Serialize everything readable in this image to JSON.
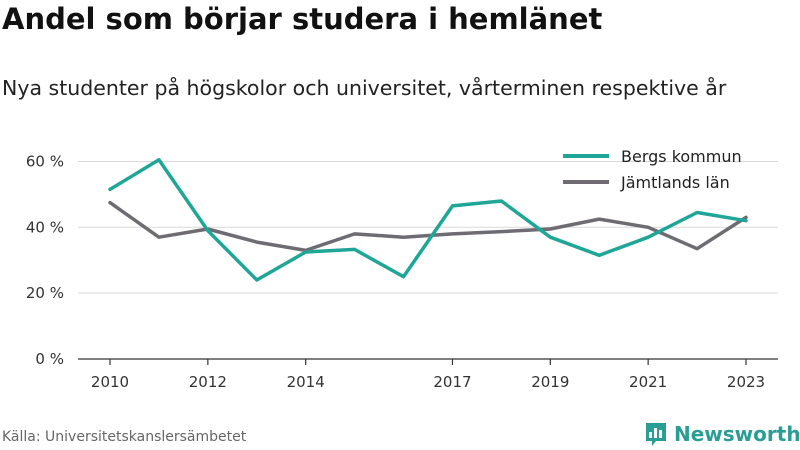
{
  "title": "Andel som börjar studera i hemlänet",
  "subtitle": "Nya studenter på högskolor och universitet, vårterminen respektive år",
  "source": "Källa: Universitetskanslersämbetet",
  "brand": {
    "name": "Newsworthy",
    "icon": "newsworthy-logo-icon",
    "color": "#2a9d95"
  },
  "chart_data": {
    "type": "line",
    "x": [
      2010,
      2011,
      2012,
      2013,
      2014,
      2015,
      2016,
      2017,
      2018,
      2019,
      2020,
      2021,
      2022,
      2023
    ],
    "series": [
      {
        "name": "Bergs kommun",
        "color": "#1fa697",
        "values": [
          51.5,
          60.5,
          39,
          24,
          32.5,
          33.3,
          25,
          46.5,
          48,
          37,
          31.5,
          37,
          44.5,
          42
        ]
      },
      {
        "name": "Jämtlands län",
        "color": "#6e6c72",
        "values": [
          47.5,
          37,
          39.5,
          35.5,
          33,
          38,
          37,
          38,
          38.7,
          39.5,
          42.5,
          40,
          33.5,
          43
        ]
      }
    ],
    "y_ticks": [
      {
        "value": 0,
        "label": "0 %"
      },
      {
        "value": 20,
        "label": "20 %"
      },
      {
        "value": 40,
        "label": "40 %"
      },
      {
        "value": 60,
        "label": "60 %"
      }
    ],
    "x_ticks": [
      2010,
      2012,
      2014,
      2017,
      2019,
      2021,
      2023
    ],
    "ylim": [
      0,
      65
    ],
    "xlim": [
      2010,
      2023
    ],
    "grid": true,
    "legend_position": "top-right"
  }
}
